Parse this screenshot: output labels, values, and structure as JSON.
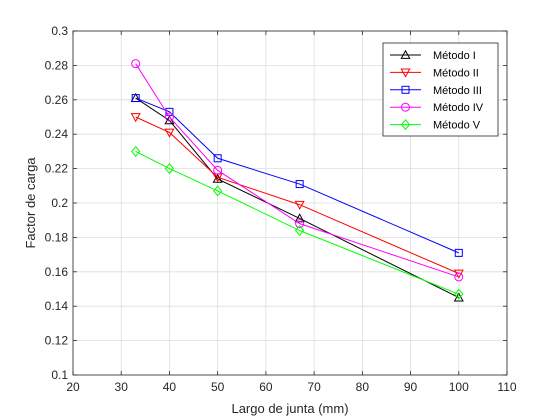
{
  "chart_data": {
    "type": "line",
    "title": "",
    "xlabel": "Largo de junta (mm)",
    "ylabel": "Factor de carga",
    "xlim": [
      20,
      110
    ],
    "ylim": [
      0.1,
      0.3
    ],
    "xticks": [
      20,
      30,
      40,
      50,
      60,
      70,
      80,
      90,
      100,
      110
    ],
    "yticks": [
      0.1,
      0.12,
      0.14,
      0.16,
      0.18,
      0.2,
      0.22,
      0.24,
      0.26,
      0.28,
      0.3
    ],
    "grid": true,
    "legend_position": "top-right",
    "x": [
      33,
      40,
      50,
      67,
      100
    ],
    "series": [
      {
        "name": "Método I",
        "values": [
          0.261,
          0.248,
          0.214,
          0.191,
          0.145
        ],
        "color": "#000000",
        "marker": "triangle-up"
      },
      {
        "name": "Método II",
        "values": [
          0.25,
          0.241,
          0.215,
          0.199,
          0.159
        ],
        "color": "#ff0000",
        "marker": "triangle-down"
      },
      {
        "name": "Método III",
        "values": [
          0.261,
          0.253,
          0.226,
          0.211,
          0.171
        ],
        "color": "#0000ff",
        "marker": "square"
      },
      {
        "name": "Método IV",
        "values": [
          0.281,
          0.25,
          0.219,
          0.188,
          0.157
        ],
        "color": "#ff00ff",
        "marker": "circle"
      },
      {
        "name": "Método V",
        "values": [
          0.23,
          0.22,
          0.207,
          0.184,
          0.147
        ],
        "color": "#00ff00",
        "marker": "diamond"
      }
    ]
  }
}
